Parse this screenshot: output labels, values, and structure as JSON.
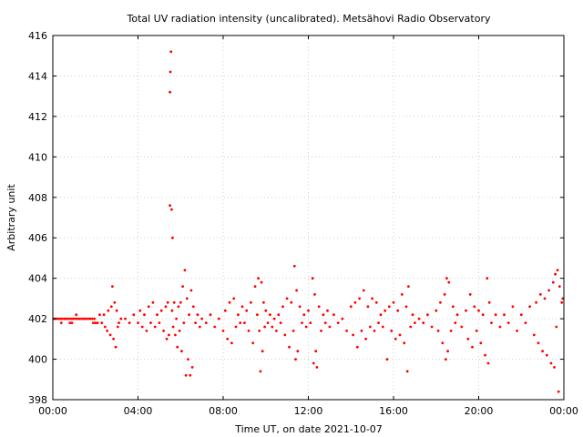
{
  "chart_data": {
    "type": "scatter",
    "title": "Total UV radiation intensity (uncalibrated). Metsähovi Radio Observatory",
    "xlabel": "Time UT, on date 2021-10-07",
    "ylabel": "Arbitrary unit",
    "xlim": [
      0,
      24
    ],
    "ylim": [
      398,
      416
    ],
    "xticks": [
      {
        "value": 0,
        "label": "00:00"
      },
      {
        "value": 4,
        "label": "04:00"
      },
      {
        "value": 8,
        "label": "08:00"
      },
      {
        "value": 12,
        "label": "12:00"
      },
      {
        "value": 16,
        "label": "16:00"
      },
      {
        "value": 20,
        "label": "20:00"
      },
      {
        "value": 24,
        "label": "00:00"
      }
    ],
    "yticks": [
      398,
      400,
      402,
      404,
      406,
      408,
      410,
      412,
      414,
      416
    ],
    "grid": true,
    "marker_color": "#ff0000",
    "series": [
      {
        "points": [
          [
            0.05,
            402.0
          ],
          [
            0.15,
            402.0
          ],
          [
            0.25,
            402.0
          ],
          [
            0.35,
            402.0
          ],
          [
            0.45,
            402.0
          ],
          [
            0.55,
            402.0
          ],
          [
            0.65,
            402.0
          ],
          [
            0.75,
            402.0
          ],
          [
            0.85,
            402.0
          ],
          [
            0.95,
            402.0
          ],
          [
            1.05,
            402.0
          ],
          [
            1.15,
            402.0
          ],
          [
            1.25,
            402.0
          ],
          [
            1.35,
            402.0
          ],
          [
            1.45,
            402.0
          ],
          [
            1.55,
            402.0
          ],
          [
            1.65,
            402.0
          ],
          [
            1.75,
            402.0
          ],
          [
            1.85,
            402.0
          ],
          [
            1.95,
            402.0
          ],
          [
            0.4,
            401.8
          ],
          [
            0.8,
            401.8
          ],
          [
            0.9,
            401.8
          ],
          [
            1.1,
            402.2
          ],
          [
            1.9,
            401.8
          ],
          [
            2.0,
            401.8
          ],
          [
            2.1,
            401.8
          ],
          [
            2.2,
            402.2
          ],
          [
            2.3,
            401.8
          ],
          [
            2.4,
            402.2
          ],
          [
            2.45,
            401.6
          ],
          [
            2.55,
            401.4
          ],
          [
            2.6,
            402.4
          ],
          [
            2.7,
            401.2
          ],
          [
            2.75,
            402.6
          ],
          [
            2.8,
            403.6
          ],
          [
            2.85,
            401.0
          ],
          [
            2.9,
            402.8
          ],
          [
            2.95,
            400.6
          ],
          [
            3.0,
            402.4
          ],
          [
            3.05,
            401.6
          ],
          [
            3.1,
            401.8
          ],
          [
            3.2,
            402.0
          ],
          [
            3.4,
            402.0
          ],
          [
            3.6,
            401.8
          ],
          [
            3.8,
            402.2
          ],
          [
            4.0,
            401.8
          ],
          [
            4.1,
            402.4
          ],
          [
            4.2,
            401.6
          ],
          [
            4.3,
            402.2
          ],
          [
            4.4,
            401.4
          ],
          [
            4.5,
            402.6
          ],
          [
            4.6,
            401.8
          ],
          [
            4.7,
            402.8
          ],
          [
            4.8,
            401.6
          ],
          [
            4.9,
            402.2
          ],
          [
            5.0,
            401.8
          ],
          [
            5.1,
            402.4
          ],
          [
            5.2,
            401.4
          ],
          [
            5.3,
            402.6
          ],
          [
            5.35,
            401.0
          ],
          [
            5.4,
            402.8
          ],
          [
            5.45,
            401.2
          ],
          [
            5.5,
            413.2
          ],
          [
            5.52,
            414.2
          ],
          [
            5.55,
            415.2
          ],
          [
            5.5,
            407.6
          ],
          [
            5.58,
            407.4
          ],
          [
            5.62,
            406.0
          ],
          [
            5.6,
            402.4
          ],
          [
            5.65,
            401.6
          ],
          [
            5.7,
            402.8
          ],
          [
            5.75,
            401.2
          ],
          [
            5.8,
            402.0
          ],
          [
            5.85,
            400.6
          ],
          [
            5.9,
            402.6
          ],
          [
            5.95,
            401.4
          ],
          [
            6.0,
            402.8
          ],
          [
            6.05,
            400.4
          ],
          [
            6.1,
            403.6
          ],
          [
            6.15,
            401.8
          ],
          [
            6.2,
            404.4
          ],
          [
            6.25,
            399.2
          ],
          [
            6.3,
            403.0
          ],
          [
            6.35,
            400.0
          ],
          [
            6.4,
            402.2
          ],
          [
            6.45,
            399.2
          ],
          [
            6.5,
            403.4
          ],
          [
            6.55,
            399.6
          ],
          [
            6.6,
            402.6
          ],
          [
            6.7,
            401.8
          ],
          [
            6.8,
            402.2
          ],
          [
            6.9,
            401.6
          ],
          [
            7.0,
            402.0
          ],
          [
            7.2,
            401.8
          ],
          [
            7.4,
            402.2
          ],
          [
            7.6,
            401.6
          ],
          [
            7.8,
            402.0
          ],
          [
            8.0,
            401.4
          ],
          [
            8.1,
            402.4
          ],
          [
            8.2,
            401.0
          ],
          [
            8.3,
            402.8
          ],
          [
            8.4,
            400.8
          ],
          [
            8.5,
            403.0
          ],
          [
            8.6,
            401.6
          ],
          [
            8.7,
            402.2
          ],
          [
            8.8,
            401.8
          ],
          [
            8.9,
            402.6
          ],
          [
            9.0,
            401.8
          ],
          [
            9.1,
            402.4
          ],
          [
            9.2,
            401.4
          ],
          [
            9.3,
            402.8
          ],
          [
            9.4,
            400.8
          ],
          [
            9.5,
            403.6
          ],
          [
            9.6,
            402.2
          ],
          [
            9.65,
            404.0
          ],
          [
            9.7,
            401.4
          ],
          [
            9.75,
            399.4
          ],
          [
            9.8,
            403.8
          ],
          [
            9.85,
            400.4
          ],
          [
            9.9,
            402.8
          ],
          [
            9.95,
            401.6
          ],
          [
            10.0,
            402.4
          ],
          [
            10.1,
            401.8
          ],
          [
            10.2,
            402.2
          ],
          [
            10.3,
            401.6
          ],
          [
            10.4,
            402.0
          ],
          [
            10.5,
            401.4
          ],
          [
            10.6,
            402.2
          ],
          [
            10.7,
            401.8
          ],
          [
            10.8,
            402.6
          ],
          [
            10.9,
            401.2
          ],
          [
            11.0,
            403.0
          ],
          [
            11.1,
            400.6
          ],
          [
            11.2,
            402.8
          ],
          [
            11.3,
            401.4
          ],
          [
            11.35,
            404.6
          ],
          [
            11.4,
            400.0
          ],
          [
            11.45,
            403.4
          ],
          [
            11.5,
            400.4
          ],
          [
            11.6,
            402.6
          ],
          [
            11.7,
            401.8
          ],
          [
            11.8,
            402.2
          ],
          [
            11.9,
            401.6
          ],
          [
            12.0,
            402.4
          ],
          [
            12.1,
            401.8
          ],
          [
            12.2,
            404.0
          ],
          [
            12.25,
            399.8
          ],
          [
            12.3,
            403.2
          ],
          [
            12.35,
            400.4
          ],
          [
            12.4,
            399.6
          ],
          [
            12.5,
            402.6
          ],
          [
            12.6,
            401.4
          ],
          [
            12.7,
            402.2
          ],
          [
            12.8,
            401.8
          ],
          [
            12.9,
            402.4
          ],
          [
            13.0,
            401.6
          ],
          [
            13.2,
            402.2
          ],
          [
            13.4,
            401.8
          ],
          [
            13.6,
            402.0
          ],
          [
            13.8,
            401.4
          ],
          [
            14.0,
            402.6
          ],
          [
            14.1,
            401.2
          ],
          [
            14.2,
            402.8
          ],
          [
            14.3,
            400.6
          ],
          [
            14.4,
            403.0
          ],
          [
            14.5,
            401.4
          ],
          [
            14.6,
            403.4
          ],
          [
            14.7,
            401.0
          ],
          [
            14.8,
            402.6
          ],
          [
            14.9,
            401.6
          ],
          [
            15.0,
            403.0
          ],
          [
            15.1,
            401.4
          ],
          [
            15.2,
            402.8
          ],
          [
            15.3,
            401.8
          ],
          [
            15.4,
            402.2
          ],
          [
            15.5,
            401.6
          ],
          [
            15.6,
            402.4
          ],
          [
            15.7,
            400.0
          ],
          [
            15.8,
            402.6
          ],
          [
            15.9,
            401.4
          ],
          [
            16.0,
            402.8
          ],
          [
            16.1,
            401.0
          ],
          [
            16.2,
            402.4
          ],
          [
            16.3,
            401.2
          ],
          [
            16.4,
            403.2
          ],
          [
            16.5,
            400.8
          ],
          [
            16.6,
            402.6
          ],
          [
            16.65,
            399.4
          ],
          [
            16.7,
            403.6
          ],
          [
            16.8,
            401.6
          ],
          [
            16.9,
            402.2
          ],
          [
            17.0,
            401.8
          ],
          [
            17.2,
            402.0
          ],
          [
            17.4,
            401.8
          ],
          [
            17.6,
            402.2
          ],
          [
            17.8,
            401.6
          ],
          [
            18.0,
            402.4
          ],
          [
            18.1,
            401.4
          ],
          [
            18.2,
            402.8
          ],
          [
            18.3,
            400.8
          ],
          [
            18.4,
            403.2
          ],
          [
            18.45,
            400.0
          ],
          [
            18.5,
            404.0
          ],
          [
            18.55,
            400.4
          ],
          [
            18.6,
            403.8
          ],
          [
            18.7,
            401.4
          ],
          [
            18.8,
            402.6
          ],
          [
            18.9,
            401.8
          ],
          [
            19.0,
            402.2
          ],
          [
            19.2,
            401.6
          ],
          [
            19.4,
            402.4
          ],
          [
            19.5,
            401.0
          ],
          [
            19.6,
            403.2
          ],
          [
            19.7,
            400.6
          ],
          [
            19.8,
            402.6
          ],
          [
            19.9,
            401.4
          ],
          [
            20.0,
            402.4
          ],
          [
            20.1,
            400.8
          ],
          [
            20.2,
            402.2
          ],
          [
            20.3,
            400.2
          ],
          [
            20.4,
            404.0
          ],
          [
            20.45,
            399.8
          ],
          [
            20.5,
            402.8
          ],
          [
            20.6,
            401.8
          ],
          [
            20.8,
            402.2
          ],
          [
            21.0,
            401.6
          ],
          [
            21.2,
            402.2
          ],
          [
            21.4,
            401.8
          ],
          [
            21.6,
            402.6
          ],
          [
            21.8,
            401.4
          ],
          [
            22.0,
            402.2
          ],
          [
            22.2,
            401.8
          ],
          [
            22.4,
            402.6
          ],
          [
            22.6,
            401.2
          ],
          [
            22.7,
            402.8
          ],
          [
            22.8,
            400.8
          ],
          [
            22.9,
            403.2
          ],
          [
            23.0,
            400.4
          ],
          [
            23.1,
            403.0
          ],
          [
            23.2,
            400.2
          ],
          [
            23.3,
            403.4
          ],
          [
            23.4,
            399.8
          ],
          [
            23.5,
            403.8
          ],
          [
            23.55,
            399.6
          ],
          [
            23.6,
            404.2
          ],
          [
            23.65,
            401.6
          ],
          [
            23.7,
            404.4
          ],
          [
            23.75,
            398.4
          ],
          [
            23.8,
            403.6
          ],
          [
            23.9,
            402.8
          ],
          [
            23.95,
            403.0
          ]
        ]
      }
    ]
  }
}
